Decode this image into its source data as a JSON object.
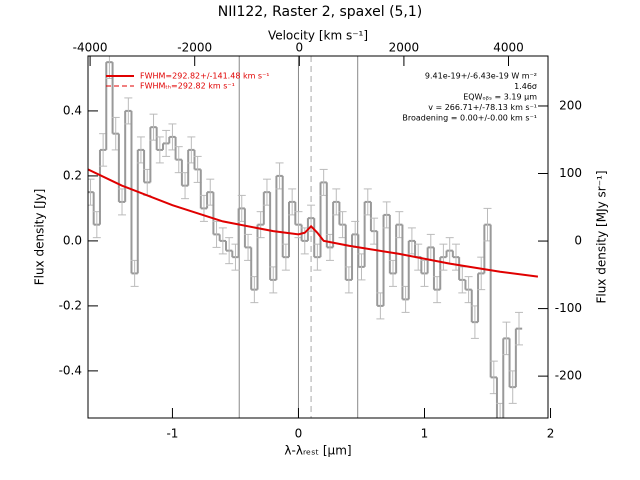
{
  "chart_data": {
    "type": "spectrum",
    "title": "NII122, Raster 2, spaxel (5,1)",
    "xlabel": "λ-λᵣₑₛₜ [μm]",
    "ylabel": "Flux density [Jy]",
    "x2label": "Velocity [km s⁻¹]",
    "y2label": "Flux density [MJy sr⁻¹]",
    "xlim": [
      -1.67,
      1.98
    ],
    "xticks": [
      -1,
      0,
      1,
      2
    ],
    "ylim": [
      -0.545,
      0.569
    ],
    "yticks": [
      -0.4,
      -0.2,
      {
        "value": 0,
        "label": "0.0"
      },
      0.2,
      0.4
    ],
    "x2lim": [
      -4040,
      4755
    ],
    "x2ticks": [
      -4000,
      -2000,
      0,
      2000,
      4000
    ],
    "y2lim": [
      -262,
      274
    ],
    "y2ticks": [
      -200,
      -100,
      0,
      100,
      200
    ],
    "data_color": "#999999",
    "x": [
      -1.65,
      -1.6,
      -1.55,
      -1.5,
      -1.45,
      -1.4,
      -1.35,
      -1.3,
      -1.25,
      -1.2,
      -1.15,
      -1.1,
      -1.05,
      -1.0,
      -0.95,
      -0.9,
      -0.85,
      -0.8,
      -0.75,
      -0.7,
      -0.65,
      -0.6,
      -0.55,
      -0.5,
      -0.45,
      -0.4,
      -0.35,
      -0.3,
      -0.25,
      -0.2,
      -0.15,
      -0.1,
      -0.05,
      0.0,
      0.05,
      0.1,
      0.15,
      0.2,
      0.25,
      0.3,
      0.35,
      0.4,
      0.45,
      0.5,
      0.55,
      0.6,
      0.65,
      0.7,
      0.75,
      0.8,
      0.85,
      0.9,
      0.95,
      1.0,
      1.05,
      1.1,
      1.15,
      1.2,
      1.25,
      1.3,
      1.35,
      1.4,
      1.45,
      1.5,
      1.55,
      1.6,
      1.65,
      1.7,
      1.75
    ],
    "values": [
      0.15,
      0.05,
      0.28,
      0.55,
      0.33,
      0.12,
      0.4,
      -0.1,
      0.28,
      0.18,
      0.35,
      0.28,
      0.3,
      0.32,
      0.25,
      0.17,
      0.28,
      0.22,
      0.1,
      0.15,
      0.02,
      0.0,
      -0.03,
      -0.05,
      0.1,
      -0.02,
      -0.15,
      0.05,
      0.15,
      -0.12,
      0.2,
      -0.05,
      0.12,
      0.05,
      0.0,
      0.07,
      -0.05,
      0.18,
      -0.02,
      0.12,
      0.05,
      -0.12,
      0.02,
      -0.08,
      0.12,
      0.03,
      -0.2,
      0.08,
      -0.1,
      0.05,
      -0.18,
      0.0,
      -0.05,
      -0.1,
      -0.02,
      -0.15,
      -0.05,
      -0.03,
      -0.05,
      -0.12,
      -0.15,
      -0.25,
      -0.1,
      0.05,
      -0.42,
      -0.55,
      -0.3,
      -0.45,
      -0.27
    ],
    "errors": [
      0.04,
      0.04,
      0.05,
      0.05,
      0.05,
      0.04,
      0.04,
      0.04,
      0.04,
      0.04,
      0.04,
      0.04,
      0.04,
      0.04,
      0.04,
      0.04,
      0.04,
      0.04,
      0.04,
      0.04,
      0.04,
      0.04,
      0.04,
      0.04,
      0.04,
      0.04,
      0.04,
      0.04,
      0.04,
      0.04,
      0.04,
      0.04,
      0.04,
      0.04,
      0.04,
      0.04,
      0.04,
      0.04,
      0.04,
      0.04,
      0.04,
      0.04,
      0.04,
      0.04,
      0.04,
      0.04,
      0.04,
      0.04,
      0.04,
      0.04,
      0.04,
      0.04,
      0.04,
      0.04,
      0.04,
      0.04,
      0.04,
      0.04,
      0.04,
      0.04,
      0.04,
      0.05,
      0.05,
      0.05,
      0.05,
      0.05,
      0.05,
      0.05,
      0.05
    ],
    "fit": {
      "name": "FWHM=292.82+/-141.48 km s⁻¹",
      "color": "#e00000",
      "x": [
        -1.67,
        -1.4,
        -1.0,
        -0.6,
        -0.2,
        0.0,
        0.05,
        0.1,
        0.15,
        0.2,
        0.4,
        0.8,
        1.2,
        1.6,
        1.9
      ],
      "values": [
        0.22,
        0.17,
        0.11,
        0.06,
        0.03,
        0.02,
        0.025,
        0.045,
        0.025,
        0.0,
        -0.015,
        -0.04,
        -0.07,
        -0.095,
        -0.11
      ]
    },
    "fit_th_name": "FWHMₜₕ=292.82 km s⁻¹",
    "vlines": [
      -0.47,
      0,
      0.47
    ],
    "dashed_line": 0.1,
    "annotations": [
      "9.41e-19+/-6.43e-19 W m⁻²",
      "1.46σ",
      "EQWₒᵦₛ = 3.19 μm",
      "v = 266.71+/-78.13 km s⁻¹",
      "Broadening = 0.00+/-0.00 km s⁻¹"
    ]
  }
}
